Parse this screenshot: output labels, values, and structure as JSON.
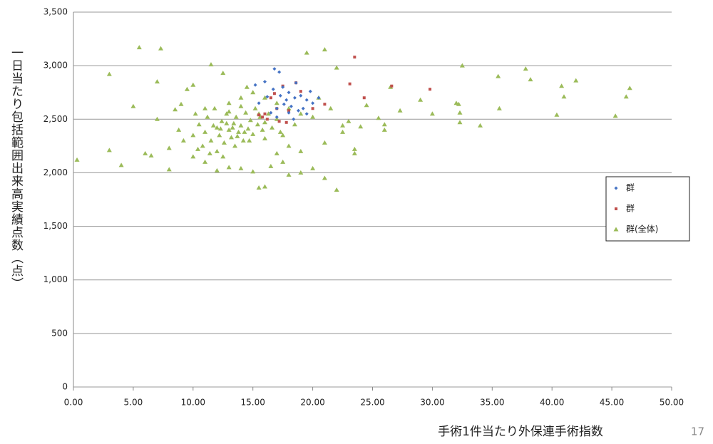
{
  "chart_data": {
    "type": "scatter",
    "x_label": "手術1件当たり外保連手術指数",
    "y_label": "一日当たり包括範囲出来高実績点数（点）",
    "page_number": "17",
    "xlim": [
      0,
      50
    ],
    "ylim": [
      0,
      3500
    ],
    "xticks": [
      {
        "value": 0,
        "label": "0.00"
      },
      {
        "value": 5,
        "label": "5.00"
      },
      {
        "value": 10,
        "label": "10.00"
      },
      {
        "value": 15,
        "label": "15.00"
      },
      {
        "value": 20,
        "label": "20.00"
      },
      {
        "value": 25,
        "label": "25.00"
      },
      {
        "value": 30,
        "label": "30.00"
      },
      {
        "value": 35,
        "label": "35.00"
      },
      {
        "value": 40,
        "label": "40.00"
      },
      {
        "value": 45,
        "label": "45.00"
      },
      {
        "value": 50,
        "label": "50.00"
      }
    ],
    "yticks": [
      0,
      500,
      {
        "value": 1000,
        "label": "1,000"
      },
      {
        "value": 1500,
        "label": "1,500"
      },
      {
        "value": 2000,
        "label": "2,000"
      },
      {
        "value": 2500,
        "label": "2,500"
      },
      {
        "value": 3000,
        "label": "3,000"
      },
      {
        "value": 3500,
        "label": "3,500"
      }
    ],
    "grid": true,
    "legend": "right",
    "series": [
      {
        "name": "群",
        "color": "#4472c4",
        "marker": "diamond",
        "x": [
          16.8,
          17.2,
          16,
          17.5,
          18,
          18.5,
          19,
          19.5,
          20,
          17,
          16.5,
          18.2,
          18.8,
          19.2,
          17.8,
          16.2,
          15.5,
          17.3,
          18.6,
          19.8,
          20.5,
          16.7,
          18,
          19.5,
          17.6,
          15.2,
          18.4,
          17
        ],
        "values": [
          2970,
          2940,
          2850,
          2800,
          2750,
          2700,
          2720,
          2680,
          2650,
          2600,
          2560,
          2620,
          2580,
          2600,
          2680,
          2710,
          2650,
          2720,
          2840,
          2760,
          2700,
          2780,
          2560,
          2550,
          2640,
          2820,
          2500,
          2520
        ]
      },
      {
        "name": "群",
        "color": "#c0504d",
        "marker": "square",
        "x": [
          23.5,
          23.1,
          24.3,
          26.6,
          29.8,
          18.6,
          17.5,
          19,
          16.5,
          17,
          16,
          16.2,
          17.2,
          17.8,
          15.8,
          21,
          20,
          18,
          16.8,
          15.5
        ],
        "values": [
          3080,
          2830,
          2700,
          2810,
          2780,
          2840,
          2810,
          2760,
          2700,
          2600,
          2550,
          2500,
          2480,
          2470,
          2520,
          2640,
          2600,
          2580,
          2740,
          2540
        ]
      },
      {
        "name": "群(全体)",
        "color": "#9bbb59",
        "marker": "triangle",
        "x": [
          0.3,
          3,
          3,
          4,
          5,
          5.5,
          7.3,
          6,
          6.5,
          7,
          7,
          8,
          8,
          11.5,
          12.5,
          19.5,
          21,
          22,
          22,
          16,
          15.5,
          20,
          19,
          18,
          21,
          23.5,
          23.5,
          24,
          24.5,
          25.5,
          26,
          26,
          26.5,
          27.3,
          29,
          30,
          32,
          32.2,
          32.3,
          32.3,
          32.5,
          34,
          35.5,
          35.6,
          37.8,
          38.2,
          40.4,
          40.8,
          41,
          42,
          45.3,
          46.2,
          46.5,
          22.5,
          21.5,
          23,
          20.5,
          21,
          22.5,
          17,
          18,
          19,
          16.5,
          17.5,
          10,
          9.5,
          9,
          8.5,
          8.8,
          9.2,
          10,
          11,
          12,
          13,
          14,
          15,
          14.5,
          15,
          16,
          17,
          18,
          19,
          20,
          18.5,
          17.5,
          16,
          10.5,
          11,
          11.2,
          11.5,
          11.8,
          12,
          12.2,
          12.4,
          12.6,
          12.8,
          13,
          13,
          13.2,
          13.4,
          13.6,
          13.8,
          14,
          14,
          14.2,
          14.4,
          14.6,
          14.8,
          15,
          15.2,
          15.4,
          15.6,
          15.8,
          16,
          16.3,
          16.6,
          17,
          17.3,
          12,
          12.5,
          13.5,
          10.8,
          11.4,
          13,
          14,
          11,
          10.2,
          10,
          10.4,
          12.8,
          13.3,
          13.7,
          14.3,
          12.3,
          11.7,
          14.7,
          15.5
        ],
        "values": [
          2120,
          2920,
          2210,
          2070,
          2620,
          3170,
          3160,
          2180,
          2160,
          2850,
          2500,
          2030,
          2230,
          3010,
          2930,
          3120,
          3150,
          2980,
          1840,
          1870,
          1860,
          2040,
          2000,
          1980,
          1950,
          2220,
          2180,
          2430,
          2630,
          2510,
          2450,
          2400,
          2800,
          2580,
          2680,
          2550,
          2650,
          2640,
          2560,
          2470,
          3000,
          2440,
          2900,
          2600,
          2970,
          2870,
          2540,
          2810,
          2710,
          2860,
          2530,
          2710,
          2790,
          2440,
          2600,
          2480,
          2700,
          2280,
          2380,
          2180,
          2250,
          2200,
          2060,
          2100,
          2820,
          2780,
          2640,
          2590,
          2400,
          2300,
          2150,
          2100,
          2020,
          2050,
          2040,
          2010,
          2800,
          2750,
          2700,
          2650,
          2600,
          2550,
          2520,
          2450,
          2350,
          2320,
          2450,
          2380,
          2520,
          2300,
          2600,
          2420,
          2350,
          2480,
          2280,
          2550,
          2400,
          2650,
          2330,
          2460,
          2520,
          2380,
          2440,
          2700,
          2300,
          2560,
          2410,
          2490,
          2360,
          2600,
          2450,
          2520,
          2400,
          2470,
          2550,
          2420,
          2500,
          2380,
          2200,
          2150,
          2250,
          2250,
          2180,
          2570,
          2620,
          2600,
          2550,
          2350,
          2220,
          2460,
          2420,
          2340,
          2380,
          2410,
          2440,
          2300,
          2550
        ]
      }
    ]
  }
}
